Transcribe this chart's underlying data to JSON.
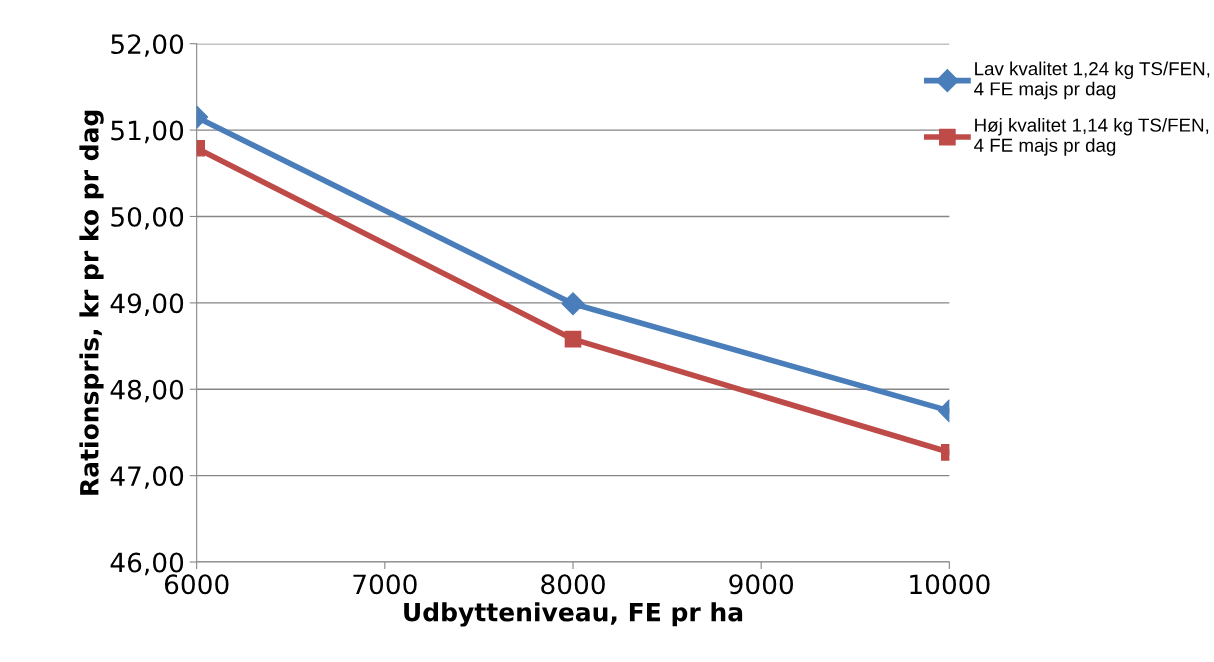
{
  "chart_data": {
    "type": "line",
    "xlabel": "Udbytteniveau, FE pr ha",
    "ylabel": "Rationspris, kr pr ko pr dag",
    "x": [
      6000,
      8000,
      10000
    ],
    "series": [
      {
        "name": "Lav kvalitet 1,24 kg TS/FEN,\n4 FE majs pr dag",
        "color": "#4a7ebb",
        "marker": "diamond",
        "values": [
          51.15,
          48.99,
          47.75
        ]
      },
      {
        "name": "Høj kvalitet 1,14 kg TS/FEN,\n4 FE majs pr dag",
        "color": "#be4b48",
        "marker": "square",
        "values": [
          50.79,
          48.58,
          47.27
        ]
      }
    ],
    "xlim": [
      6000,
      10000
    ],
    "xticks": [
      6000,
      7000,
      8000,
      9000,
      10000
    ],
    "ylim": [
      46,
      52
    ],
    "yticks": [
      {
        "value": 46,
        "label": "46,00"
      },
      {
        "value": 47,
        "label": "47,00"
      },
      {
        "value": 48,
        "label": "48,00"
      },
      {
        "value": 49,
        "label": "49,00"
      },
      {
        "value": 50,
        "label": "50,00"
      },
      {
        "value": 51,
        "label": "51,00"
      },
      {
        "value": 52,
        "label": "52,00"
      }
    ],
    "grid": "y",
    "legend": "right",
    "line_style": "solid"
  }
}
